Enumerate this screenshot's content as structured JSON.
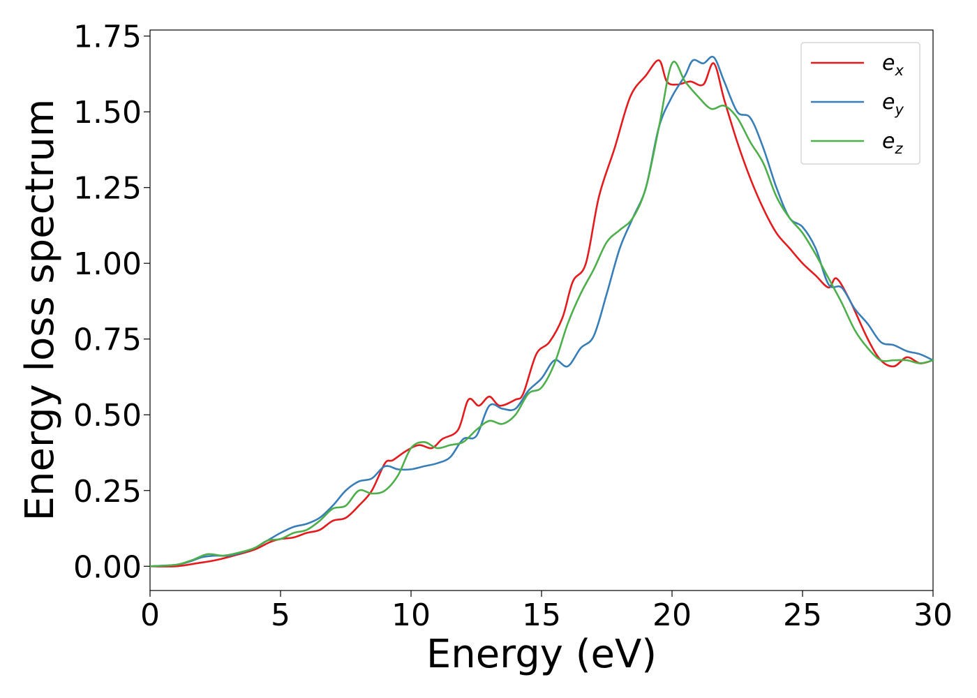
{
  "chart_data": {
    "type": "line",
    "xlabel": "Energy (eV)",
    "ylabel": "Energy loss spectrum",
    "xlim": [
      0,
      30
    ],
    "ylim": [
      -0.08,
      1.77
    ],
    "xticks": [
      0,
      5,
      10,
      15,
      20,
      25,
      30
    ],
    "xtick_labels": [
      "0",
      "5",
      "10",
      "15",
      "20",
      "25",
      "30"
    ],
    "yticks": [
      0,
      0.25,
      0.5,
      0.75,
      1.0,
      1.25,
      1.5,
      1.75
    ],
    "ytick_labels": [
      "0.00",
      "0.25",
      "0.50",
      "0.75",
      "1.00",
      "1.25",
      "1.50",
      "1.75"
    ],
    "grid": false,
    "legend": "top-right",
    "series": [
      {
        "name": "e",
        "subscript": "x",
        "color": "#e41a1c",
        "x": [
          0,
          1,
          1.8,
          2.5,
          3.2,
          4,
          4.6,
          5,
          5.5,
          6,
          6.5,
          7,
          7.5,
          8,
          8.5,
          9,
          9.3,
          9.8,
          10.3,
          10.8,
          11.2,
          11.8,
          12.2,
          12.6,
          13,
          13.4,
          14,
          14.3,
          14.8,
          15.3,
          15.8,
          16.2,
          16.7,
          17.2,
          17.8,
          18.4,
          19.0,
          19.5,
          19.8,
          20.2,
          20.7,
          21.2,
          21.6,
          22,
          22.5,
          23,
          23.5,
          24,
          24.5,
          25,
          25.5,
          26,
          26.3,
          26.8,
          27.5,
          28,
          28.5,
          29,
          29.5,
          30
        ],
        "y": [
          0,
          0,
          0.01,
          0.02,
          0.035,
          0.055,
          0.08,
          0.09,
          0.095,
          0.11,
          0.12,
          0.15,
          0.16,
          0.2,
          0.25,
          0.34,
          0.35,
          0.38,
          0.4,
          0.39,
          0.42,
          0.45,
          0.55,
          0.53,
          0.56,
          0.53,
          0.55,
          0.57,
          0.7,
          0.74,
          0.82,
          0.94,
          1.0,
          1.22,
          1.38,
          1.55,
          1.62,
          1.67,
          1.6,
          1.59,
          1.6,
          1.59,
          1.66,
          1.54,
          1.4,
          1.28,
          1.18,
          1.1,
          1.05,
          1.0,
          0.96,
          0.92,
          0.95,
          0.88,
          0.75,
          0.68,
          0.66,
          0.69,
          0.67,
          0.68
        ]
      },
      {
        "name": "e",
        "subscript": "y",
        "color": "#377eb8",
        "x": [
          0,
          1,
          1.5,
          2,
          2.5,
          3,
          3.5,
          4,
          4.5,
          5,
          5.5,
          6,
          6.5,
          7,
          7.5,
          8,
          8.5,
          9,
          9.5,
          10,
          10.5,
          11,
          11.5,
          12,
          12.5,
          13,
          13.5,
          14,
          14.5,
          15,
          15.5,
          16,
          16.5,
          17,
          17.5,
          18,
          18.5,
          19,
          19.5,
          20,
          20.5,
          20.8,
          21.2,
          21.6,
          22,
          22.5,
          23,
          23.5,
          24,
          24.5,
          25,
          25.5,
          26,
          26.5,
          27,
          27.5,
          28,
          28.5,
          29,
          29.5,
          30
        ],
        "y": [
          0,
          0.005,
          0.015,
          0.03,
          0.035,
          0.035,
          0.045,
          0.06,
          0.085,
          0.11,
          0.13,
          0.14,
          0.16,
          0.2,
          0.25,
          0.28,
          0.29,
          0.33,
          0.32,
          0.32,
          0.33,
          0.34,
          0.36,
          0.42,
          0.43,
          0.53,
          0.52,
          0.52,
          0.58,
          0.62,
          0.68,
          0.66,
          0.72,
          0.76,
          0.9,
          1.05,
          1.15,
          1.25,
          1.45,
          1.55,
          1.62,
          1.67,
          1.66,
          1.68,
          1.6,
          1.5,
          1.48,
          1.38,
          1.25,
          1.15,
          1.12,
          1.05,
          0.93,
          0.92,
          0.85,
          0.8,
          0.74,
          0.73,
          0.71,
          0.7,
          0.68
        ]
      },
      {
        "name": "e",
        "subscript": "z",
        "color": "#4daf4a",
        "x": [
          0,
          1,
          1.6,
          2.2,
          2.8,
          3.4,
          4,
          4.5,
          5,
          5.5,
          6,
          6.5,
          7,
          7.5,
          8,
          8.5,
          9,
          9.5,
          10,
          10.5,
          11,
          11.5,
          12,
          12.5,
          13,
          13.5,
          14,
          14.5,
          15,
          15.5,
          16,
          16.5,
          17,
          17.5,
          18,
          18.5,
          19,
          19.5,
          20,
          20.5,
          21,
          21.5,
          22,
          22.5,
          23,
          23.5,
          24,
          24.5,
          25,
          25.5,
          26,
          26.5,
          27,
          27.5,
          28,
          28.5,
          29,
          29.5,
          30
        ],
        "y": [
          0,
          0.005,
          0.02,
          0.04,
          0.035,
          0.045,
          0.06,
          0.085,
          0.09,
          0.11,
          0.12,
          0.15,
          0.19,
          0.2,
          0.25,
          0.24,
          0.25,
          0.3,
          0.39,
          0.41,
          0.39,
          0.4,
          0.41,
          0.45,
          0.48,
          0.47,
          0.5,
          0.57,
          0.59,
          0.67,
          0.8,
          0.9,
          0.98,
          1.07,
          1.11,
          1.15,
          1.25,
          1.45,
          1.66,
          1.6,
          1.55,
          1.51,
          1.52,
          1.48,
          1.4,
          1.33,
          1.22,
          1.15,
          1.1,
          1.03,
          0.95,
          0.87,
          0.78,
          0.72,
          0.68,
          0.68,
          0.68,
          0.67,
          0.68
        ]
      }
    ]
  }
}
